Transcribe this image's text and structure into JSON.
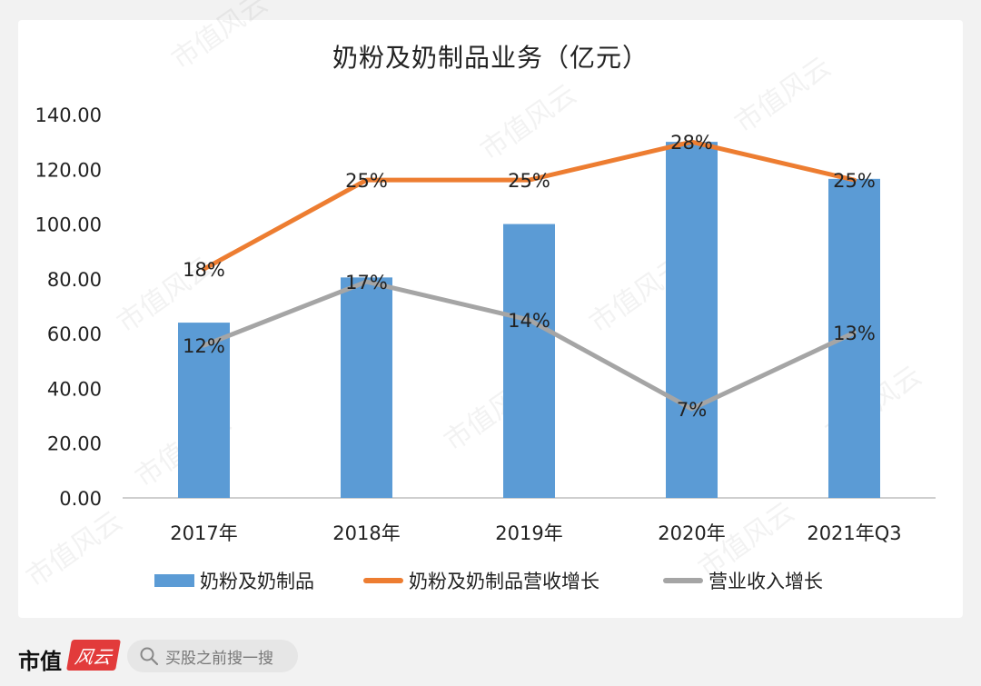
{
  "watermark": "市值风云",
  "chart_data": {
    "type": "bar",
    "title": "奶粉及奶制品业务（亿元）",
    "categories": [
      "2017年",
      "2018年",
      "2019年",
      "2020年",
      "2021年Q3"
    ],
    "ylim": [
      0,
      140
    ],
    "yticks": [
      "0.00",
      "20.00",
      "40.00",
      "60.00",
      "80.00",
      "100.00",
      "120.00",
      "140.00"
    ],
    "series": [
      {
        "name": "奶粉及奶制品",
        "kind": "bar",
        "color": "#5b9bd5",
        "values": [
          64,
          80.5,
          100,
          130,
          116.5
        ]
      },
      {
        "name": "奶粉及奶制品营收增长",
        "kind": "line",
        "color": "#ed7d31",
        "values": [
          18,
          25,
          25,
          28,
          25
        ],
        "labels": [
          "18%",
          "25%",
          "25%",
          "28%",
          "25%"
        ]
      },
      {
        "name": "营业收入增长",
        "kind": "line",
        "color": "#a5a5a5",
        "values": [
          12,
          17,
          14,
          7,
          13
        ],
        "labels": [
          "12%",
          "17%",
          "14%",
          "7%",
          "13%"
        ]
      }
    ]
  },
  "footer": {
    "brand": "市值",
    "brand_mark": "风云",
    "search_placeholder": "买股之前搜一搜"
  }
}
